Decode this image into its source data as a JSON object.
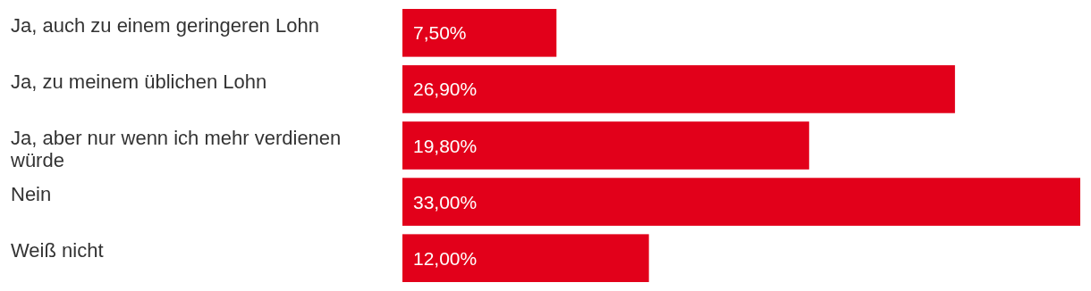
{
  "chart_data": {
    "type": "bar",
    "orientation": "horizontal",
    "categories": [
      "Ja, auch zu einem geringeren Lohn",
      "Ja, zu meinem üblichen Lohn",
      "Ja, aber nur wenn ich mehr verdienen würde",
      "Nein",
      "Weiß nicht"
    ],
    "values": [
      7.5,
      26.9,
      19.8,
      33,
      12
    ],
    "value_labels": [
      "7,50%",
      "26,90%",
      "19,80%",
      "33,00%",
      "12,00%"
    ],
    "color": "#e2001a",
    "grid": false
  }
}
